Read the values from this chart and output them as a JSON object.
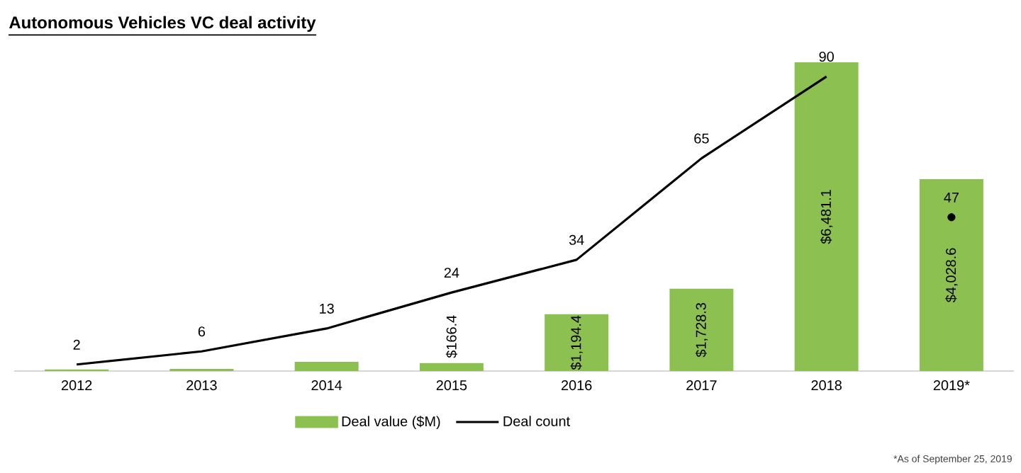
{
  "chart_data": {
    "type": "bar",
    "title": "Autonomous Vehicles VC deal activity",
    "categories": [
      "2012",
      "2013",
      "2014",
      "2015",
      "2016",
      "2017",
      "2018",
      "2019*"
    ],
    "series": [
      {
        "name": "Deal value ($M)",
        "color": "#8cc152",
        "values": [
          35,
          45,
          195,
          166.4,
          1194.4,
          1728.3,
          6481.1,
          4028.6
        ],
        "value_labels": [
          null,
          null,
          null,
          "$166.4",
          "$1,194.4",
          "$1,728.3",
          "$6,481.1",
          "$4,028.6"
        ]
      },
      {
        "name": "Deal count",
        "type": "line",
        "axis": "y2",
        "color": "#000000",
        "marker": "none",
        "values": [
          2,
          6,
          13,
          24,
          34,
          65,
          90,
          null
        ],
        "value_labels": [
          "2",
          "6",
          "13",
          "24",
          "34",
          "65",
          "90",
          null
        ]
      },
      {
        "type": "scatter",
        "axis": "y2",
        "color": "#000000",
        "marker": "circle",
        "values": [
          null,
          null,
          null,
          null,
          null,
          null,
          null,
          47
        ],
        "value_labels": [
          null,
          null,
          null,
          null,
          null,
          null,
          null,
          "47"
        ]
      }
    ],
    "legend": "bottom",
    "tick_labels": "x",
    "annotations": [
      "*As of September 25, 2019"
    ]
  }
}
